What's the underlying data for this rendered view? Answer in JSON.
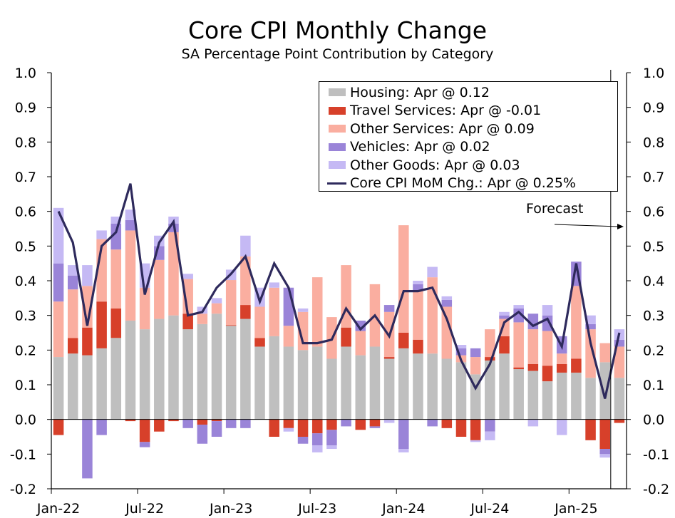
{
  "chart_data": {
    "type": "bar",
    "stacked": true,
    "title": "Core CPI Monthly Change",
    "subtitle": "SA Percentage Point Contribution by Category",
    "xlabel": "",
    "ylabel": "",
    "ylim": [
      -0.2,
      1.0
    ],
    "y_ticks": [
      "1.0",
      "0.9",
      "0.8",
      "0.7",
      "0.6",
      "0.5",
      "0.4",
      "0.3",
      "0.2",
      "0.1",
      "0.0",
      "-0.1",
      "-0.2"
    ],
    "x_tick_labels": [
      "Jan-22",
      "Jul-22",
      "Jan-23",
      "Jul-23",
      "Jan-24",
      "Jul-24",
      "Jan-25"
    ],
    "categories": [
      "Jan-22",
      "Feb-22",
      "Mar-22",
      "Apr-22",
      "May-22",
      "Jun-22",
      "Jul-22",
      "Aug-22",
      "Sep-22",
      "Oct-22",
      "Nov-22",
      "Dec-22",
      "Jan-23",
      "Feb-23",
      "Mar-23",
      "Apr-23",
      "May-23",
      "Jun-23",
      "Jul-23",
      "Aug-23",
      "Sep-23",
      "Oct-23",
      "Nov-23",
      "Dec-23",
      "Jan-24",
      "Feb-24",
      "Mar-24",
      "Apr-24",
      "May-24",
      "Jun-24",
      "Jul-24",
      "Aug-24",
      "Sep-24",
      "Oct-24",
      "Nov-24",
      "Dec-24",
      "Jan-25",
      "Feb-25",
      "Mar-25",
      "Apr-25"
    ],
    "series": [
      {
        "name": "Housing",
        "color": "#bfbfbf",
        "values": [
          0.18,
          0.19,
          0.185,
          0.205,
          0.235,
          0.285,
          0.26,
          0.29,
          0.3,
          0.26,
          0.275,
          0.305,
          0.27,
          0.29,
          0.21,
          0.24,
          0.21,
          0.2,
          0.21,
          0.175,
          0.21,
          0.185,
          0.21,
          0.175,
          0.205,
          0.19,
          0.19,
          0.175,
          0.165,
          0.13,
          0.17,
          0.19,
          0.145,
          0.14,
          0.11,
          0.135,
          0.135,
          0.12,
          0.165,
          0.12
        ]
      },
      {
        "name": "Travel Services",
        "color": "#d7402a",
        "values": [
          -0.045,
          0.045,
          0.08,
          0.135,
          0.085,
          -0.005,
          -0.065,
          -0.035,
          -0.005,
          0.045,
          -0.015,
          -0.005,
          0.002,
          0.04,
          0.025,
          -0.05,
          -0.025,
          -0.05,
          -0.04,
          -0.03,
          0.055,
          -0.03,
          -0.02,
          0.005,
          0.045,
          0.04,
          0,
          -0.025,
          -0.05,
          -0.06,
          0.01,
          0.05,
          0.005,
          0.02,
          0.045,
          0.025,
          0.04,
          -0.06,
          -0.085,
          -0.01
        ]
      },
      {
        "name": "Other Services",
        "color": "#faaea0",
        "values": [
          0.16,
          0.14,
          0.12,
          0.18,
          0.17,
          0.26,
          0.12,
          0.17,
          0.24,
          0.1,
          0.03,
          0.03,
          0.13,
          0.14,
          0.09,
          0.14,
          0.06,
          0.11,
          0.2,
          0.12,
          0.18,
          0.07,
          0.18,
          0.13,
          0.31,
          0.14,
          0.22,
          0.15,
          0.02,
          0.05,
          0.08,
          0.05,
          0.13,
          0.1,
          0.1,
          0.03,
          0.21,
          0.14,
          0.055,
          0.09
        ]
      },
      {
        "name": "Vehicles",
        "color": "#9a84d8",
        "values": [
          0.11,
          0.04,
          -0.17,
          -0.045,
          0.075,
          0.03,
          -0.015,
          0.04,
          0.025,
          -0.025,
          -0.055,
          -0.045,
          -0.025,
          -0.025,
          0,
          0,
          0.11,
          -0.02,
          -0.035,
          -0.045,
          -0.02,
          0.03,
          -0.005,
          0.02,
          -0.085,
          0.02,
          -0.02,
          0.02,
          0.02,
          0.025,
          -0.035,
          0.01,
          0.04,
          0.045,
          0.045,
          0.05,
          0.07,
          0.015,
          -0.015,
          0.02
        ]
      },
      {
        "name": "Other Goods",
        "color": "#c5b9f4",
        "values": [
          0.16,
          0.03,
          0.06,
          0.025,
          0.02,
          0.03,
          0.07,
          0.03,
          0.02,
          0.015,
          0.02,
          0.015,
          0.03,
          0.06,
          0.055,
          0.015,
          -0.01,
          0.01,
          -0.02,
          -0.01,
          0,
          0,
          0,
          -0.01,
          -0.01,
          0.01,
          0.03,
          0.01,
          0.01,
          -0.005,
          -0.025,
          0.01,
          0.01,
          -0.02,
          0.03,
          -0.045,
          0,
          0.025,
          -0.01,
          0.03
        ]
      },
      {
        "name": "Core CPI MoM Chg.",
        "color": "#2e2a5c",
        "kind": "line",
        "values": [
          0.6,
          0.51,
          0.27,
          0.5,
          0.54,
          0.68,
          0.36,
          0.51,
          0.57,
          0.3,
          0.31,
          0.38,
          0.42,
          0.47,
          0.34,
          0.45,
          0.38,
          0.22,
          0.22,
          0.23,
          0.32,
          0.26,
          0.3,
          0.24,
          0.37,
          0.37,
          0.38,
          0.29,
          0.17,
          0.09,
          0.16,
          0.28,
          0.31,
          0.27,
          0.29,
          0.21,
          0.45,
          0.22,
          0.06,
          0.25
        ]
      }
    ],
    "legend": [
      {
        "label": "Housing: Apr @ 0.12",
        "color": "#bfbfbf",
        "kind": "bar"
      },
      {
        "label": "Travel Services: Apr @ -0.01",
        "color": "#d7402a",
        "kind": "bar"
      },
      {
        "label": "Other Services: Apr @ 0.09",
        "color": "#faaea0",
        "kind": "bar"
      },
      {
        "label": "Vehicles: Apr @ 0.02",
        "color": "#9a84d8",
        "kind": "bar"
      },
      {
        "label": "Other Goods: Apr @ 0.03",
        "color": "#c5b9f4",
        "kind": "bar"
      },
      {
        "label": "Core CPI MoM Chg.: Apr @ 0.25%",
        "color": "#2e2a5c",
        "kind": "line"
      }
    ],
    "legend_position": "top-right",
    "annotation": "Forecast",
    "forecast_index": 39
  }
}
